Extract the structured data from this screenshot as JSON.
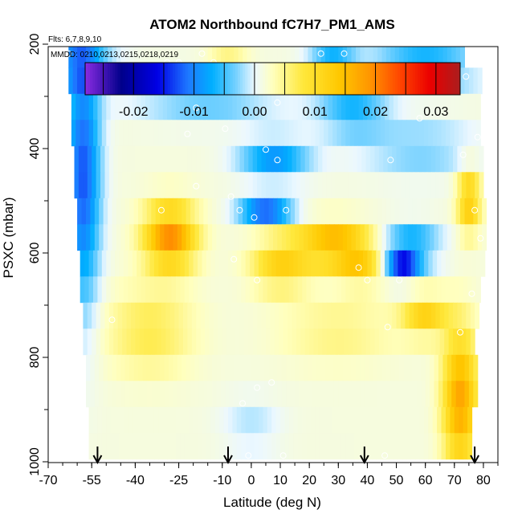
{
  "chart_data": {
    "type": "heatmap",
    "title": "ATOM2 Northbound fC7H7_PM1_AMS",
    "flights_label": "Flts: 6,7,8,9,10",
    "dates_label": "MMDD: 0210,0213,0215,0218,0219",
    "xlabel": "Latitude (deg N)",
    "ylabel": "PSXC (mbar)",
    "xlim": [
      -70,
      85
    ],
    "ylim": [
      1000,
      200
    ],
    "x_ticks": [
      -70,
      -55,
      -40,
      -25,
      -10,
      0,
      10,
      20,
      30,
      40,
      50,
      60,
      70,
      80
    ],
    "y_ticks": [
      200,
      400,
      600,
      800,
      1000
    ],
    "colorbar": {
      "ticks": [
        -0.02,
        -0.01,
        0.0,
        0.01,
        0.02,
        0.03
      ],
      "range": [
        -0.028,
        0.034
      ],
      "colors": [
        "#8a2be2",
        "#00008b",
        "#0000ff",
        "#1e90ff",
        "#00bfff",
        "#ffffff",
        "#ffff80",
        "#ffd700",
        "#ffa500",
        "#ff4500",
        "#ff0000",
        "#b22222"
      ]
    },
    "pressure_levels": [
      220,
      270,
      320,
      370,
      420,
      470,
      520,
      570,
      620,
      670,
      720,
      770,
      820,
      870,
      920,
      970
    ],
    "layer_lat_ranges": [
      [
        -63,
        73
      ],
      [
        -63,
        79
      ],
      [
        -62,
        79
      ],
      [
        -62,
        79
      ],
      [
        -61,
        79
      ],
      [
        -61,
        79
      ],
      [
        -60,
        80
      ],
      [
        -60,
        80
      ],
      [
        -59,
        80
      ],
      [
        -59,
        79
      ],
      [
        -58,
        78
      ],
      [
        -58,
        77
      ],
      [
        -57,
        77
      ],
      [
        -57,
        77
      ],
      [
        -56,
        76
      ],
      [
        -56,
        76
      ]
    ],
    "field_features": [
      {
        "lat": -58,
        "p": 450,
        "value": -0.014,
        "sx": 6,
        "sy": 250
      },
      {
        "lat": -60,
        "p": 240,
        "value": -0.01,
        "sx": 12,
        "sy": 40
      },
      {
        "lat": 60,
        "p": 240,
        "value": -0.01,
        "sx": 18,
        "sy": 40
      },
      {
        "lat": 28,
        "p": 240,
        "value": -0.012,
        "sx": 8,
        "sy": 30
      },
      {
        "lat": -8,
        "p": 240,
        "value": 0.006,
        "sx": 7,
        "sy": 30
      },
      {
        "lat": 5,
        "p": 280,
        "value": 0.012,
        "sx": 7,
        "sy": 20
      },
      {
        "lat": -15,
        "p": 300,
        "value": -0.006,
        "sx": 25,
        "sy": 45
      },
      {
        "lat": 35,
        "p": 330,
        "value": -0.008,
        "sx": 12,
        "sy": 45
      },
      {
        "lat": 8,
        "p": 420,
        "value": -0.01,
        "sx": 12,
        "sy": 40
      },
      {
        "lat": 58,
        "p": 400,
        "value": -0.005,
        "sx": 20,
        "sy": 50
      },
      {
        "lat": -28,
        "p": 570,
        "value": 0.018,
        "sx": 9,
        "sy": 60
      },
      {
        "lat": 28,
        "p": 585,
        "value": 0.015,
        "sx": 12,
        "sy": 40
      },
      {
        "lat": 38,
        "p": 620,
        "value": 0.009,
        "sx": 8,
        "sy": 40
      },
      {
        "lat": 5,
        "p": 520,
        "value": -0.013,
        "sx": 9,
        "sy": 25
      },
      {
        "lat": 52,
        "p": 635,
        "value": -0.024,
        "sx": 6,
        "sy": 20
      },
      {
        "lat": 55,
        "p": 585,
        "value": -0.009,
        "sx": 10,
        "sy": 40
      },
      {
        "lat": 72,
        "p": 880,
        "value": 0.016,
        "sx": 6,
        "sy": 130
      },
      {
        "lat": 60,
        "p": 720,
        "value": 0.01,
        "sx": 8,
        "sy": 40
      },
      {
        "lat": 30,
        "p": 750,
        "value": 0.004,
        "sx": 20,
        "sy": 60
      },
      {
        "lat": -35,
        "p": 750,
        "value": 0.006,
        "sx": 15,
        "sy": 80
      },
      {
        "lat": 0,
        "p": 930,
        "value": -0.003,
        "sx": 10,
        "sy": 50
      },
      {
        "lat": 10,
        "p": 620,
        "value": 0.01,
        "sx": 10,
        "sy": 50
      },
      {
        "lat": 75,
        "p": 500,
        "value": 0.012,
        "sx": 4,
        "sy": 60
      }
    ],
    "sample_points": [
      [
        -63,
        218
      ],
      [
        -25,
        235
      ],
      [
        -29,
        235
      ],
      [
        -17,
        218
      ],
      [
        -13,
        235
      ],
      [
        14,
        250
      ],
      [
        19,
        250
      ],
      [
        24,
        218
      ],
      [
        32,
        218
      ],
      [
        68,
        262
      ],
      [
        74,
        262
      ],
      [
        0,
        272
      ],
      [
        15,
        272
      ],
      [
        -19,
        322
      ],
      [
        9,
        312
      ],
      [
        -9,
        362
      ],
      [
        -22,
        372
      ],
      [
        58,
        342
      ],
      [
        5,
        402
      ],
      [
        9,
        422
      ],
      [
        48,
        422
      ],
      [
        73,
        412
      ],
      [
        78,
        378
      ],
      [
        -19,
        472
      ],
      [
        -7,
        492
      ],
      [
        -31,
        518
      ],
      [
        -4,
        518
      ],
      [
        1,
        532
      ],
      [
        12,
        518
      ],
      [
        77,
        518
      ],
      [
        79,
        572
      ],
      [
        -6,
        612
      ],
      [
        2,
        652
      ],
      [
        37,
        628
      ],
      [
        40,
        652
      ],
      [
        51,
        652
      ],
      [
        76,
        678
      ],
      [
        -48,
        728
      ],
      [
        47,
        742
      ],
      [
        72,
        752
      ],
      [
        -3,
        888
      ],
      [
        2,
        858
      ],
      [
        7,
        848
      ],
      [
        -1,
        988
      ],
      [
        11,
        988
      ],
      [
        46,
        988
      ],
      [
        78,
        988
      ]
    ],
    "arrows_lat": [
      -53,
      -8,
      39,
      77
    ],
    "grid": false
  }
}
